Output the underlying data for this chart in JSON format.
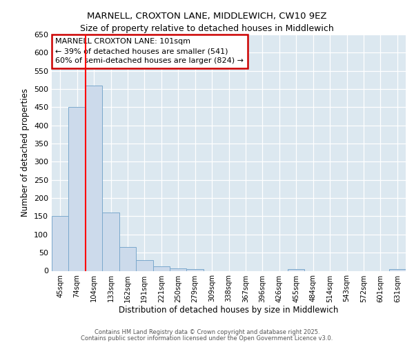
{
  "title1": "MARNELL, CROXTON LANE, MIDDLEWICH, CW10 9EZ",
  "title2": "Size of property relative to detached houses in Middlewich",
  "xlabel": "Distribution of detached houses by size in Middlewich",
  "ylabel": "Number of detached properties",
  "categories": [
    "45sqm",
    "74sqm",
    "104sqm",
    "133sqm",
    "162sqm",
    "191sqm",
    "221sqm",
    "250sqm",
    "279sqm",
    "309sqm",
    "338sqm",
    "367sqm",
    "396sqm",
    "426sqm",
    "455sqm",
    "484sqm",
    "514sqm",
    "543sqm",
    "572sqm",
    "601sqm",
    "631sqm"
  ],
  "values": [
    150,
    450,
    510,
    160,
    65,
    30,
    12,
    7,
    5,
    0,
    0,
    0,
    0,
    0,
    5,
    0,
    0,
    0,
    0,
    0,
    5
  ],
  "bar_color": "#ccdaeb",
  "bar_edge_color": "#7aa8cc",
  "red_line_x": 1.5,
  "annotation_title": "MARNELL CROXTON LANE: 101sqm",
  "annotation_line1": "← 39% of detached houses are smaller (541)",
  "annotation_line2": "60% of semi-detached houses are larger (824) →",
  "annotation_box_color": "#ffffff",
  "annotation_box_edge": "#cc0000",
  "ylim": [
    0,
    650
  ],
  "yticks": [
    0,
    50,
    100,
    150,
    200,
    250,
    300,
    350,
    400,
    450,
    500,
    550,
    600,
    650
  ],
  "bg_color": "#dce8f0",
  "footer1": "Contains HM Land Registry data © Crown copyright and database right 2025.",
  "footer2": "Contains public sector information licensed under the Open Government Licence v3.0."
}
